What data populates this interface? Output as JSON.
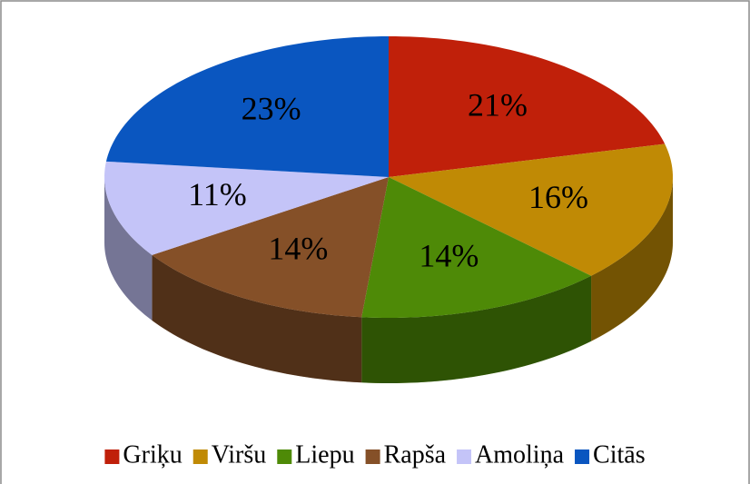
{
  "chart_data": {
    "type": "pie",
    "categories": [
      "Griķu",
      "Viršu",
      "Liepu",
      "Rapša",
      "Amoliņa",
      "Citās"
    ],
    "values": [
      21,
      16,
      14,
      14,
      11,
      23
    ],
    "value_labels": [
      "21%",
      "16%",
      "14%",
      "14%",
      "11%",
      "23%"
    ],
    "colors": [
      "#c0200a",
      "#c08a05",
      "#4e8a07",
      "#855028",
      "#c4c4f8",
      "#0a56c0"
    ],
    "legend": "bottom",
    "three_d": true
  }
}
